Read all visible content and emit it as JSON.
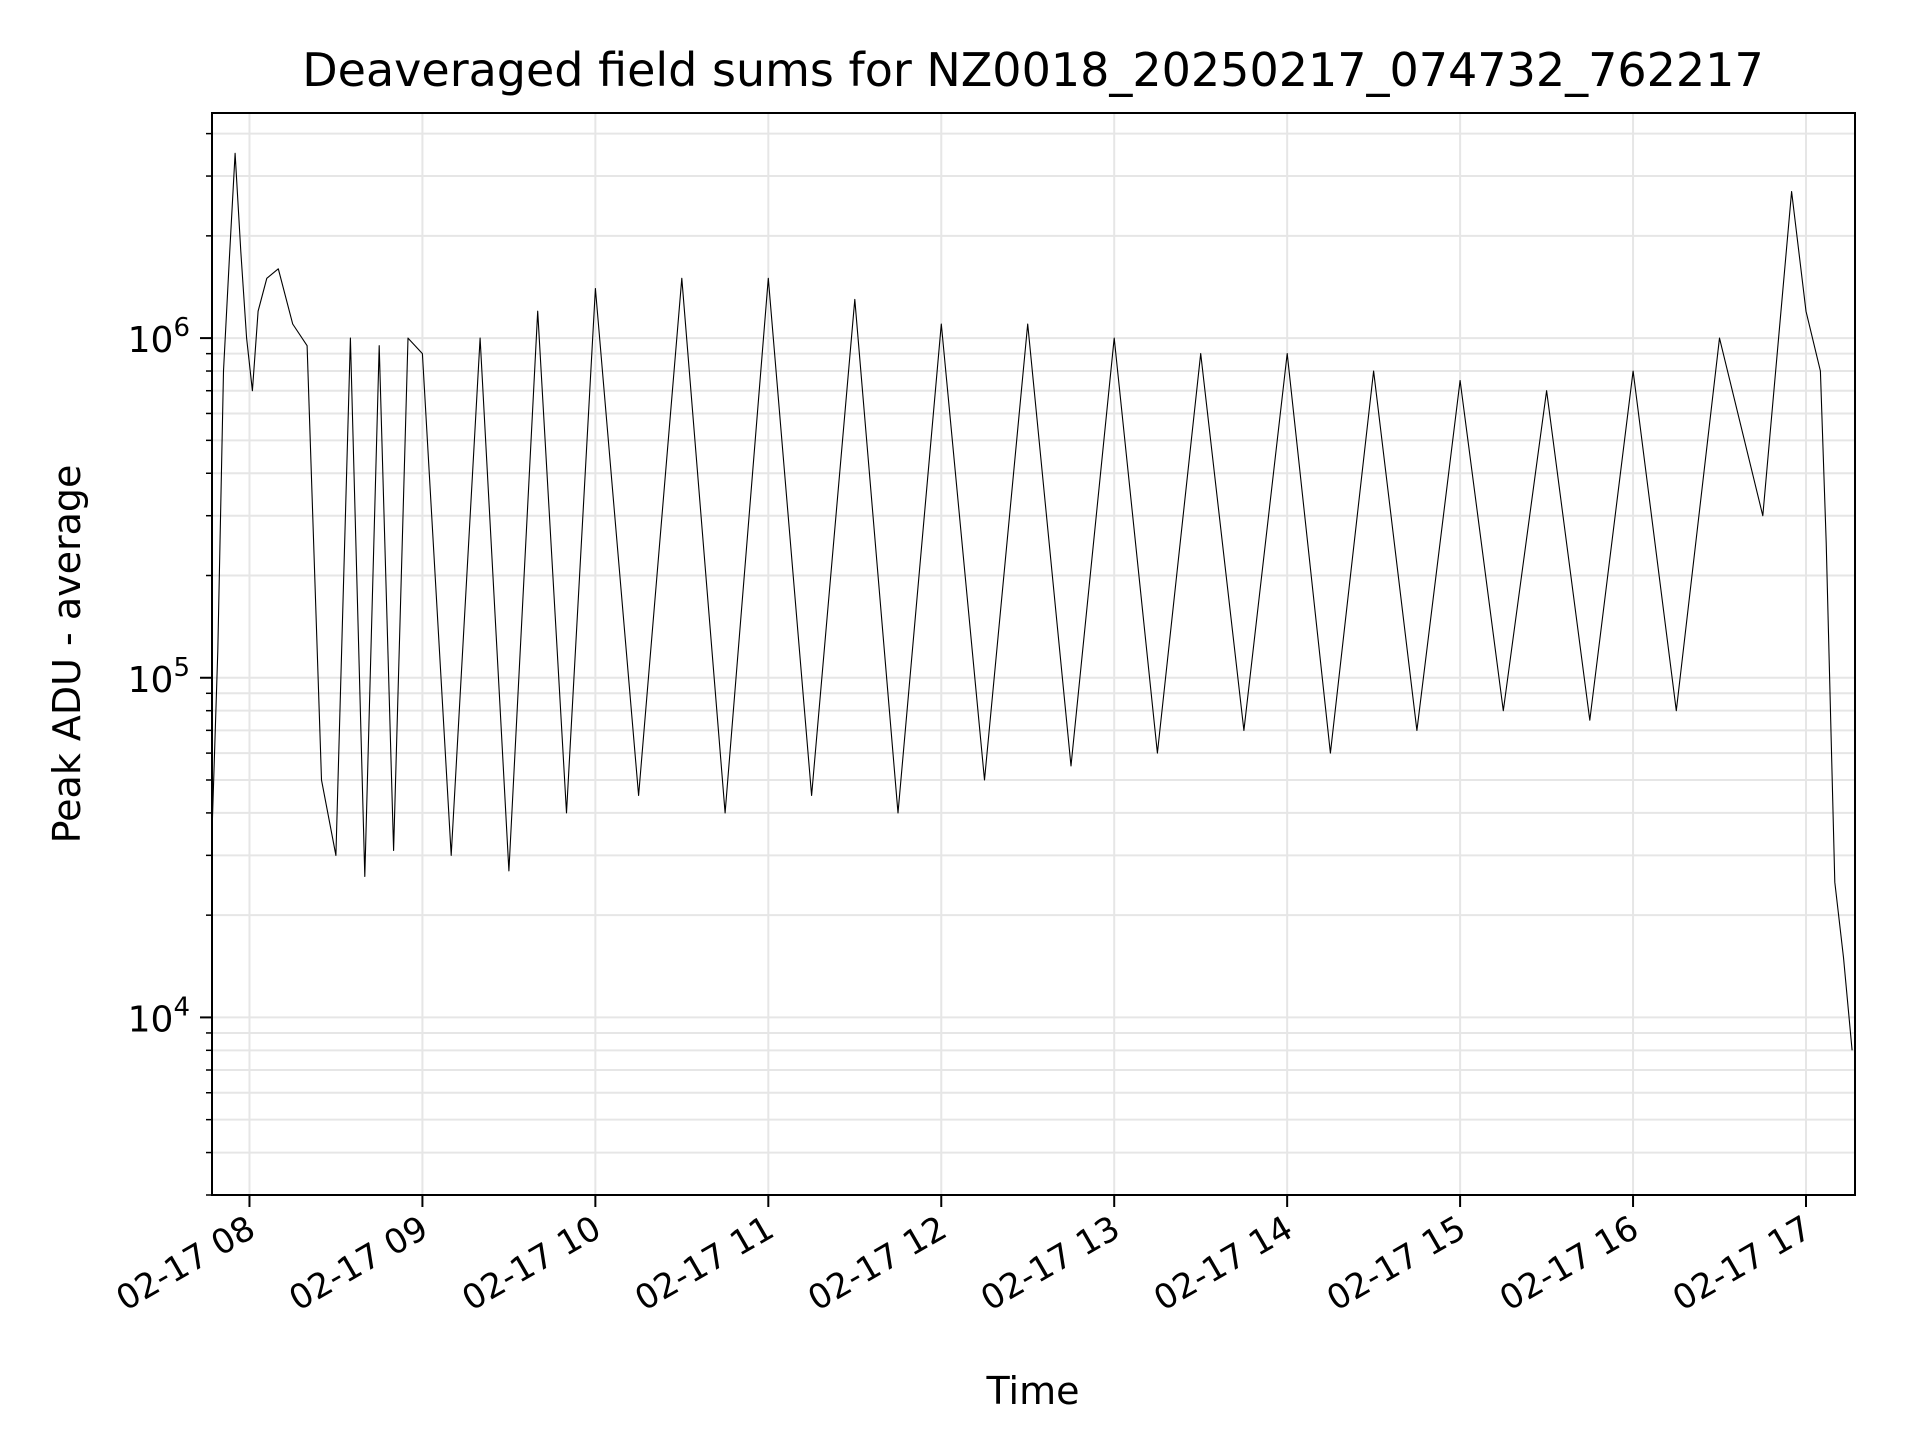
{
  "chart_data": {
    "type": "line",
    "title": "Deaveraged field sums for NZ0018_20250217_074732_762217",
    "xlabel": "Time",
    "ylabel": "Peak ADU - average",
    "x_scale": "time",
    "y_scale": "log",
    "xlim": [
      "2025-02-17 07:47",
      "2025-02-17 17:17"
    ],
    "ylim": [
      3000,
      4600000
    ],
    "x_ticks": [
      "02-17 08",
      "02-17 09",
      "02-17 10",
      "02-17 11",
      "02-17 12",
      "02-17 13",
      "02-17 14",
      "02-17 15",
      "02-17 16",
      "02-17 17"
    ],
    "y_ticks": [
      {
        "base": "10",
        "exp": "4",
        "value": 10000
      },
      {
        "base": "10",
        "exp": "5",
        "value": 100000
      },
      {
        "base": "10",
        "exp": "6",
        "value": 1000000
      }
    ],
    "grid": true,
    "line_color": "#000000",
    "series": [
      {
        "x": [
          "07:47",
          "07:49",
          "07:51",
          "07:53",
          "07:55",
          "07:57",
          "07:59",
          "08:01",
          "08:03",
          "08:06",
          "08:10",
          "08:15",
          "08:20",
          "08:25",
          "08:30",
          "08:35",
          "08:40",
          "08:45",
          "08:50",
          "08:55",
          "09:00",
          "09:10",
          "09:20",
          "09:30",
          "09:40",
          "09:50",
          "10:00",
          "10:15",
          "10:30",
          "10:45",
          "11:00",
          "11:15",
          "11:30",
          "11:45",
          "12:00",
          "12:15",
          "12:30",
          "12:45",
          "13:00",
          "13:15",
          "13:30",
          "13:45",
          "14:00",
          "14:15",
          "14:30",
          "14:45",
          "15:00",
          "15:15",
          "15:30",
          "15:45",
          "16:00",
          "16:15",
          "16:30",
          "16:45",
          "16:55",
          "17:00",
          "17:05",
          "17:07",
          "17:10",
          "17:13",
          "17:16"
        ],
        "y": [
          35000,
          120000,
          800000,
          1700000,
          3500000,
          1800000,
          1000000,
          700000,
          1200000,
          1500000,
          1600000,
          1100000,
          950000,
          50000,
          30000,
          1000000,
          26000,
          950000,
          31000,
          1000000,
          900000,
          30000,
          1000000,
          27000,
          1200000,
          40000,
          1400000,
          45000,
          1500000,
          40000,
          1500000,
          45000,
          1300000,
          40000,
          1100000,
          50000,
          1100000,
          55000,
          1000000,
          60000,
          900000,
          70000,
          900000,
          60000,
          800000,
          70000,
          750000,
          80000,
          700000,
          75000,
          800000,
          80000,
          1000000,
          300000,
          2700000,
          1200000,
          800000,
          250000,
          25000,
          15000,
          8000
        ]
      }
    ]
  }
}
